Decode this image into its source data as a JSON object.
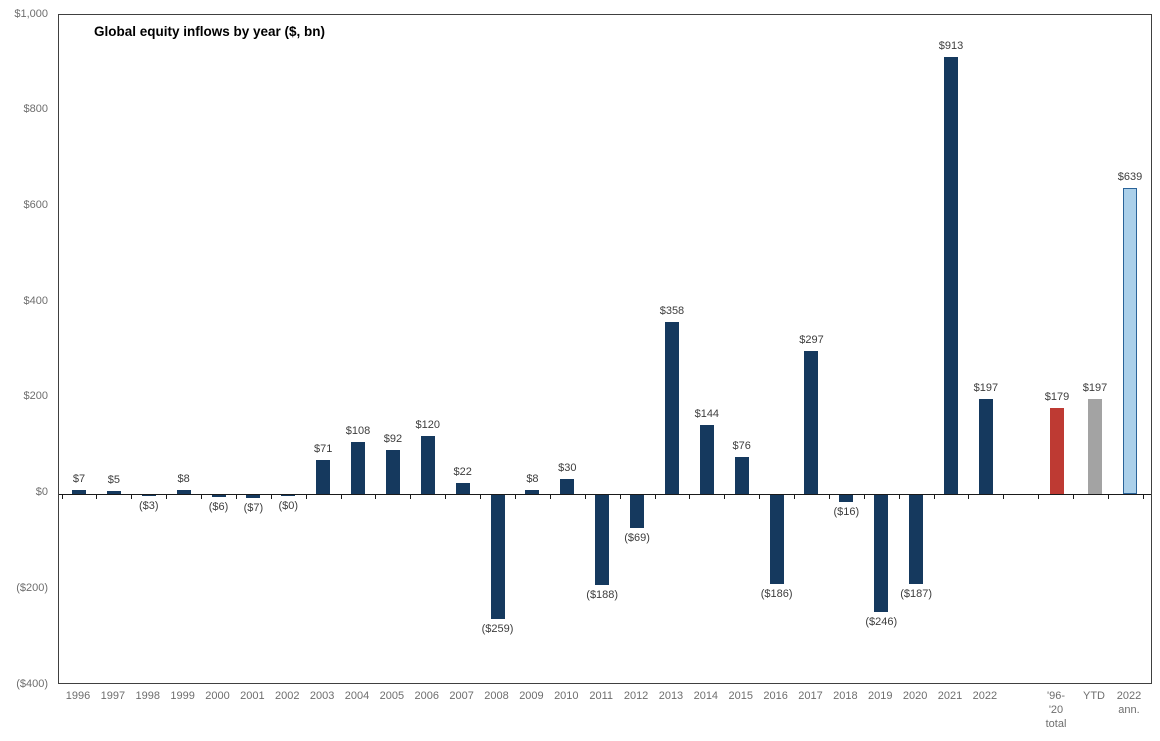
{
  "chart_data": {
    "type": "bar",
    "title": "Global equity inflows by year ($, bn)",
    "xlabel": "",
    "ylabel": "",
    "ylim": [
      -400,
      1000
    ],
    "y_tick_step": 200,
    "grid": false,
    "legend": "none",
    "y_ticks": [
      {
        "label": "$1,000",
        "value": 1000
      },
      {
        "label": "$800",
        "value": 800
      },
      {
        "label": "$600",
        "value": 600
      },
      {
        "label": "$400",
        "value": 400
      },
      {
        "label": "$200",
        "value": 200
      },
      {
        "label": "$0",
        "value": 0
      },
      {
        "label": "($200)",
        "value": -200
      },
      {
        "label": "($400)",
        "value": -400
      }
    ],
    "colors": {
      "default_bar": "#15395e",
      "total_bar": "#be3a33",
      "ytd_bar": "#a3a3a3",
      "annualized_fill": "#abd0ea",
      "annualized_border": "#2a6399",
      "axis_line": "#1a1a1a",
      "value_label_text": "#3d3d3d",
      "axis_label_text": "#6e6e6e"
    },
    "bars": [
      {
        "category": "1996",
        "label": "$7",
        "value": 7,
        "style": "default"
      },
      {
        "category": "1997",
        "label": "$5",
        "value": 5,
        "style": "default"
      },
      {
        "category": "1998",
        "label": "($3)",
        "value": -3,
        "style": "default"
      },
      {
        "category": "1999",
        "label": "$8",
        "value": 8,
        "style": "default"
      },
      {
        "category": "2000",
        "label": "($6)",
        "value": -6,
        "style": "default"
      },
      {
        "category": "2001",
        "label": "($7)",
        "value": -7,
        "style": "default"
      },
      {
        "category": "2002",
        "label": "($0)",
        "value": 0,
        "style": "default"
      },
      {
        "category": "2003",
        "label": "$71",
        "value": 71,
        "style": "default"
      },
      {
        "category": "2004",
        "label": "$108",
        "value": 108,
        "style": "default"
      },
      {
        "category": "2005",
        "label": "$92",
        "value": 92,
        "style": "default"
      },
      {
        "category": "2006",
        "label": "$120",
        "value": 120,
        "style": "default"
      },
      {
        "category": "2007",
        "label": "$22",
        "value": 22,
        "style": "default"
      },
      {
        "category": "2008",
        "label": "($259)",
        "value": -259,
        "style": "default"
      },
      {
        "category": "2009",
        "label": "$8",
        "value": 8,
        "style": "default"
      },
      {
        "category": "2010",
        "label": "$30",
        "value": 30,
        "style": "default"
      },
      {
        "category": "2011",
        "label": "($188)",
        "value": -188,
        "style": "default"
      },
      {
        "category": "2012",
        "label": "($69)",
        "value": -69,
        "style": "default"
      },
      {
        "category": "2013",
        "label": "$358",
        "value": 358,
        "style": "default"
      },
      {
        "category": "2014",
        "label": "$144",
        "value": 144,
        "style": "default"
      },
      {
        "category": "2015",
        "label": "$76",
        "value": 76,
        "style": "default"
      },
      {
        "category": "2016",
        "label": "($186)",
        "value": -186,
        "style": "default"
      },
      {
        "category": "2017",
        "label": "$297",
        "value": 297,
        "style": "default"
      },
      {
        "category": "2018",
        "label": "($16)",
        "value": -16,
        "style": "default"
      },
      {
        "category": "2019",
        "label": "($246)",
        "value": -246,
        "style": "default"
      },
      {
        "category": "2020",
        "label": "($187)",
        "value": -187,
        "style": "default"
      },
      {
        "category": "2021",
        "label": "$913",
        "value": 913,
        "style": "default"
      },
      {
        "category": "2022",
        "label": "$197",
        "value": 197,
        "style": "default"
      },
      {
        "category": "'96-\n'20\ntotal",
        "label": "$179",
        "value": 179,
        "style": "total"
      },
      {
        "category": "YTD",
        "label": "$197",
        "value": 197,
        "style": "ytd"
      },
      {
        "category": "2022\nann.",
        "label": "$639",
        "value": 639,
        "style": "annualized"
      }
    ]
  }
}
